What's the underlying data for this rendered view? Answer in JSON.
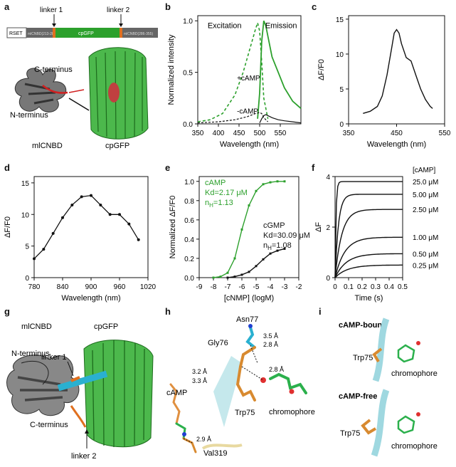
{
  "panels": {
    "a": {
      "letter": "a",
      "construct": {
        "seg1": "RSET",
        "seg2": "mlCNBD(213-285)",
        "seg3": "cpGFP",
        "seg4": "mlCNBD(286-355)"
      },
      "linker1": "linker 1",
      "linker2": "linker 2",
      "c_terminus": "C-terminus",
      "n_terminus": "N-terminus",
      "domain1": "mlCNBD",
      "domain2": "cpGFP",
      "colors": {
        "green": "#2ca02c",
        "linker": "#e07020",
        "dark": "#555555"
      }
    },
    "b": {
      "letter": "b"
    },
    "c": {
      "letter": "c"
    },
    "d": {
      "letter": "d"
    },
    "e": {
      "letter": "e"
    },
    "f": {
      "letter": "f"
    },
    "g": {
      "letter": "g",
      "domain1": "mlCNBD",
      "domain2": "cpGFP",
      "n_terminus": "N-terminus",
      "c_terminus": "C-terminus",
      "linker1": "linker 1",
      "linker2": "linker 2"
    },
    "h": {
      "letter": "h",
      "residues": {
        "asn": "Asn77",
        "gly": "Gly76",
        "trp": "Trp75",
        "val": "Val319",
        "camp": "cAMP",
        "chromophore": "chromophore"
      },
      "distances": {
        "d1": "3.5 Å",
        "d2": "2.8 Å",
        "d3": "3.2 Å",
        "d4": "2.8 Å",
        "d5": "3.3 Å",
        "d6": "2.9 Å"
      }
    },
    "i": {
      "letter": "i",
      "state1": "cAMP-bound",
      "state2": "cAMP-free",
      "trp": "Trp75",
      "chromophore": "chromophore"
    }
  },
  "chart_data": [
    {
      "id": "b",
      "type": "line",
      "xlabel": "Wavelength (nm)",
      "ylabel": "Normalized intensity",
      "xlim": [
        350,
        600
      ],
      "ylim": [
        0,
        1.05
      ],
      "xticks": [
        "350",
        "400",
        "450",
        "500",
        "550"
      ],
      "yticks": [
        "0.0",
        "0.5",
        "1.0"
      ],
      "annotations": [
        "Excitation",
        "Emission",
        "+cAMP",
        "-cAMP"
      ],
      "series": [
        {
          "style": "green-dashed",
          "x": [
            350,
            380,
            410,
            440,
            460,
            480,
            490,
            495,
            500,
            505,
            510,
            520
          ],
          "y": [
            0.02,
            0.04,
            0.1,
            0.28,
            0.5,
            0.78,
            0.92,
            0.98,
            0.9,
            0.6,
            0.25,
            0.05
          ]
        },
        {
          "style": "green-solid",
          "x": [
            495,
            500,
            505,
            510,
            515,
            520,
            530,
            545,
            560,
            580,
            600
          ],
          "y": [
            0.05,
            0.3,
            0.8,
            1.0,
            0.95,
            0.85,
            0.65,
            0.5,
            0.35,
            0.22,
            0.15
          ]
        },
        {
          "style": "black-dashed",
          "x": [
            350,
            400,
            440,
            470,
            490,
            500,
            505,
            510,
            520
          ],
          "y": [
            0.01,
            0.02,
            0.04,
            0.07,
            0.1,
            0.11,
            0.1,
            0.06,
            0.02
          ]
        },
        {
          "style": "black-solid",
          "x": [
            500,
            505,
            510,
            515,
            520,
            530,
            545,
            560,
            580,
            600
          ],
          "y": [
            0.01,
            0.05,
            0.08,
            0.09,
            0.08,
            0.06,
            0.04,
            0.03,
            0.02,
            0.01
          ]
        }
      ]
    },
    {
      "id": "c",
      "type": "line",
      "xlabel": "Wavelength (nm)",
      "ylabel": "ΔF/F0",
      "xlim": [
        350,
        550
      ],
      "ylim": [
        0,
        15.5
      ],
      "xticks": [
        "350",
        "450",
        "550"
      ],
      "yticks": [
        "0",
        "5",
        "10",
        "15"
      ],
      "series": [
        {
          "x": [
            380,
            395,
            410,
            420,
            430,
            440,
            445,
            450,
            455,
            460,
            470,
            480,
            490,
            500,
            510,
            520,
            525
          ],
          "y": [
            1.5,
            1.8,
            2.5,
            4,
            7,
            11,
            13,
            13.5,
            13,
            11.5,
            9.5,
            9,
            7,
            5,
            3.5,
            2.5,
            2.2
          ]
        }
      ]
    },
    {
      "id": "d",
      "type": "line",
      "xlabel": "Wavelength (nm)",
      "ylabel": "ΔF/F0",
      "xlim": [
        780,
        1020
      ],
      "ylim": [
        0,
        16
      ],
      "xticks": [
        "780",
        "840",
        "900",
        "960",
        "1020"
      ],
      "yticks": [
        "0",
        "5",
        "10",
        "15"
      ],
      "series": [
        {
          "x": [
            780,
            800,
            820,
            840,
            860,
            880,
            900,
            920,
            940,
            960,
            980,
            1000
          ],
          "y": [
            3,
            4.5,
            7,
            9.5,
            11.5,
            12.8,
            13,
            11.5,
            10,
            10,
            8.5,
            6
          ]
        }
      ]
    },
    {
      "id": "e",
      "type": "line",
      "xlabel": "[cNMP] (logM)",
      "ylabel": "Normalized ΔF/F0",
      "xlim": [
        -9,
        -2
      ],
      "ylim": [
        0,
        1.05
      ],
      "xticks": [
        "-9",
        "-8",
        "-7",
        "-6",
        "-5",
        "-4",
        "-3",
        "-2"
      ],
      "yticks": [
        "0.0",
        "0.2",
        "0.4",
        "0.6",
        "0.8",
        "1.0"
      ],
      "series": [
        {
          "name": "cAMP",
          "kd": "Kd=2.17 μM",
          "nh": "1.13",
          "x": [
            -8,
            -7.5,
            -7,
            -6.5,
            -6,
            -5.5,
            -5,
            -4.5,
            -4,
            -3.5,
            -3
          ],
          "y": [
            0,
            0.01,
            0.05,
            0.2,
            0.5,
            0.75,
            0.9,
            0.97,
            0.99,
            1.0,
            1.0
          ]
        },
        {
          "name": "cGMP",
          "kd": "Kd=30.09 μM",
          "nh": "1.08",
          "x": [
            -7,
            -6.5,
            -6,
            -5.5,
            -5,
            -4.5,
            -4,
            -3.5,
            -3
          ],
          "y": [
            0,
            0.01,
            0.03,
            0.06,
            0.12,
            0.19,
            0.25,
            0.28,
            0.3
          ]
        }
      ]
    },
    {
      "id": "f",
      "type": "line",
      "xlabel": "Time (s)",
      "ylabel": "ΔF",
      "xlim": [
        0,
        0.5
      ],
      "ylim": [
        0,
        4
      ],
      "xticks": [
        "0",
        "0.1",
        "0.2",
        "0.3",
        "0.4",
        "0.5"
      ],
      "yticks": [
        "0",
        "2",
        "4"
      ],
      "legend_title": "[cAMP]",
      "series": [
        {
          "name": "25.0 μM",
          "plateau": 3.8,
          "rate": 150
        },
        {
          "name": "5.00 μM",
          "plateau": 3.3,
          "rate": 40
        },
        {
          "name": "2.50 μM",
          "plateau": 2.7,
          "rate": 20
        },
        {
          "name": "1.00 μM",
          "plateau": 1.6,
          "rate": 14
        },
        {
          "name": "0.50 μM",
          "plateau": 0.95,
          "rate": 12
        },
        {
          "name": "0.25 μM",
          "plateau": 0.5,
          "rate": 11
        }
      ]
    }
  ]
}
